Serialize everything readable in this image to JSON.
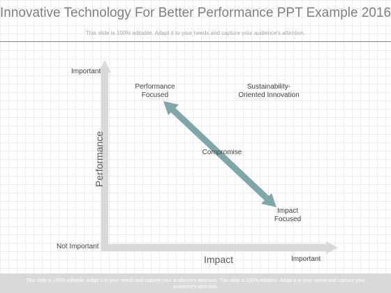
{
  "slide": {
    "title": "Innovative Technology For Better Performance PPT Example 2016",
    "subtitle": "This slide is 100% editable. Adapt it to your needs and capture your audience's attention."
  },
  "diagram": {
    "y_axis_label": "Performance",
    "x_axis_label": "Impact",
    "y_high": "Important",
    "origin": "Not Important",
    "x_high": "Important",
    "quadrants": {
      "top_left": "Performance\nFocused",
      "top_right": "Sustainability-\nOriented Innovation",
      "center": "Compromise",
      "bottom_right": "Impact\nFocused"
    },
    "colors": {
      "axis": "#d9d9d9",
      "arrow": "#7fa6a8",
      "arrow_stroke": "#5f8a8c"
    }
  },
  "footer": {
    "text": "This slide is 100% editable. Adapt it to your needs and capture your audience's attention. This slide is 100% editable. Adapt it to your needs and capture your audience's attention."
  }
}
